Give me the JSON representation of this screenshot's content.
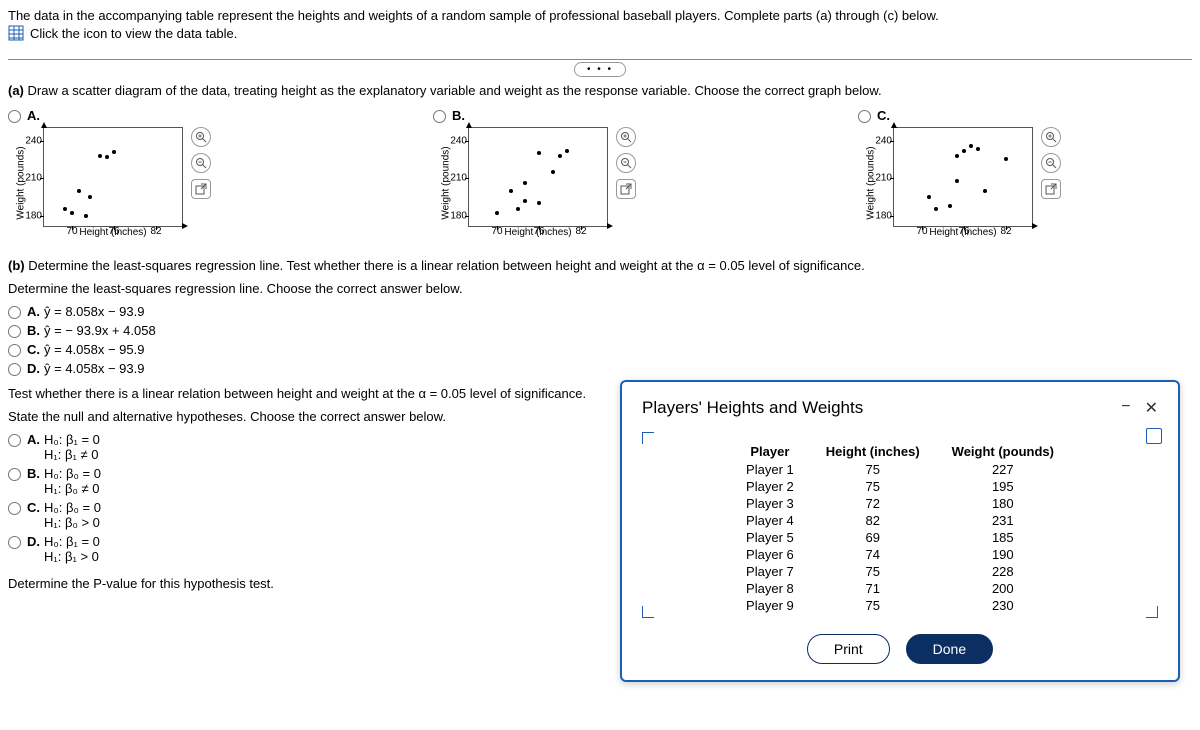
{
  "intro": {
    "text": "The data in the accompanying table represent the heights and weights of a random sample of professional baseball players. Complete parts (a) through (c) below.",
    "link_text": "Click the icon to view the data table."
  },
  "part_a": {
    "prompt_prefix": "(a) ",
    "prompt": "Draw a scatter diagram of the data, treating height as the explanatory variable and weight as the response variable. Choose the correct graph below.",
    "options": [
      "A.",
      "B.",
      "C."
    ],
    "chart": {
      "ylabel": "Weight (pounds)",
      "xlabel": "Height (inches)",
      "yticks": [
        180,
        210,
        240
      ],
      "xticks": [
        70,
        76,
        82
      ],
      "ylim": [
        170,
        250
      ],
      "xlim": [
        66,
        86
      ],
      "points_A": [
        [
          69,
          185
        ],
        [
          70,
          182
        ],
        [
          71,
          200
        ],
        [
          72,
          180
        ],
        [
          72.5,
          195
        ],
        [
          74,
          228
        ],
        [
          75,
          227
        ],
        [
          76,
          231
        ]
      ],
      "points_B": [
        [
          70,
          182
        ],
        [
          72,
          200
        ],
        [
          73,
          185
        ],
        [
          74,
          206
        ],
        [
          74,
          192
        ],
        [
          76,
          190
        ],
        [
          76,
          230
        ],
        [
          78,
          215
        ],
        [
          79,
          228
        ],
        [
          80,
          232
        ]
      ],
      "points_C": [
        [
          71,
          195
        ],
        [
          72,
          185
        ],
        [
          74,
          188
        ],
        [
          75,
          208
        ],
        [
          75,
          228
        ],
        [
          76,
          232
        ],
        [
          77,
          236
        ],
        [
          78,
          233
        ],
        [
          79,
          200
        ],
        [
          82,
          225
        ]
      ]
    }
  },
  "part_b": {
    "prompt_prefix": "(b) ",
    "prompt": "Determine the least-squares regression line. Test whether there is a linear relation between height and weight at the α = 0.05 level of significance.",
    "sub1": "Determine the least-squares regression line. Choose the correct answer below.",
    "reg_options": {
      "A": "ŷ = 8.058x − 93.9",
      "B": "ŷ = − 93.9x + 4.058",
      "C": "ŷ = 4.058x − 95.9",
      "D": "ŷ = 4.058x − 93.9"
    },
    "sub2": "Test whether there is a linear relation between height and weight at the α = 0.05 level of significance.",
    "sub3": "State the null and alternative hypotheses. Choose the correct answer below.",
    "hyp_options": {
      "A": {
        "h0": "H₀: β₁ = 0",
        "h1": "H₁: β₁ ≠ 0"
      },
      "B": {
        "h0": "H₀: β₀ = 0",
        "h1": "H₁: β₀ ≠ 0"
      },
      "C": {
        "h0": "H₀: β₀ = 0",
        "h1": "H₁: β₀ > 0"
      },
      "D": {
        "h0": "H₀: β₁ = 0",
        "h1": "H₁: β₁ > 0"
      }
    },
    "sub4": "Determine the P-value for this hypothesis test."
  },
  "popup": {
    "title": "Players' Heights and Weights",
    "columns": [
      "Player",
      "Height (inches)",
      "Weight (pounds)"
    ],
    "rows": [
      [
        "Player 1",
        "75",
        "227"
      ],
      [
        "Player 2",
        "75",
        "195"
      ],
      [
        "Player 3",
        "72",
        "180"
      ],
      [
        "Player 4",
        "82",
        "231"
      ],
      [
        "Player 5",
        "69",
        "185"
      ],
      [
        "Player 6",
        "74",
        "190"
      ],
      [
        "Player 7",
        "75",
        "228"
      ],
      [
        "Player 8",
        "71",
        "200"
      ],
      [
        "Player 9",
        "75",
        "230"
      ]
    ],
    "print": "Print",
    "done": "Done"
  },
  "icons": {
    "minimize": "−",
    "close": "✕"
  }
}
